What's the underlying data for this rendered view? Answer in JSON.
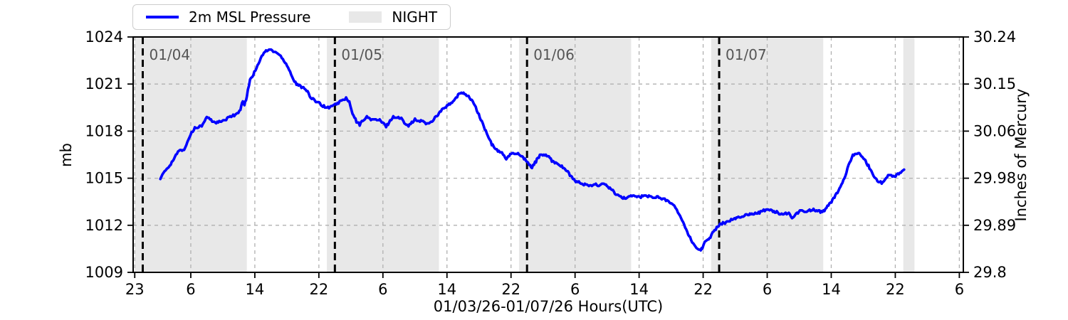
{
  "legend": {
    "pressure_label": "2m MSL Pressure",
    "night_label": "NIGHT"
  },
  "axes": {
    "left_label": "mb",
    "right_label": "Inches of Mercury",
    "x_label": "01/03/26-01/07/26  Hours(UTC)"
  },
  "colors": {
    "line": "#0000ff",
    "night_band": "#e8e8e8",
    "grid": "#b0b0b0",
    "day_line": "#000000",
    "day_label": "#555555",
    "spine": "#000000",
    "text": "#000000",
    "legend_border": "#cccccc"
  },
  "chart_data": {
    "type": "line",
    "title": "",
    "xlabel": "01/03/26-01/07/26  Hours(UTC)",
    "ylabel_left": "mb",
    "ylabel_right": "Inches of Mercury",
    "x_unit": "hours relative to 01/04/26 00:00 UTC",
    "xlim": [
      -1.2,
      102.5
    ],
    "ylim_mb": [
      1009,
      1024
    ],
    "ylim_inhg": [
      29.8,
      30.24
    ],
    "grid": true,
    "legend_position": "top-left-outside",
    "left_ticks": [
      1009,
      1012,
      1015,
      1018,
      1021,
      1024
    ],
    "right_tick_labels": [
      "29.8",
      "29.89",
      "29.98",
      "30.06",
      "30.15",
      "30.24"
    ],
    "x_ticks": [
      {
        "hour": -1,
        "label": "23"
      },
      {
        "hour": 6,
        "label": "6"
      },
      {
        "hour": 14,
        "label": "14"
      },
      {
        "hour": 22,
        "label": "22"
      },
      {
        "hour": 30,
        "label": "6"
      },
      {
        "hour": 38,
        "label": "14"
      },
      {
        "hour": 46,
        "label": "22"
      },
      {
        "hour": 54,
        "label": "6"
      },
      {
        "hour": 62,
        "label": "14"
      },
      {
        "hour": 70,
        "label": "22"
      },
      {
        "hour": 78,
        "label": "6"
      },
      {
        "hour": 86,
        "label": "14"
      },
      {
        "hour": 94,
        "label": "22"
      },
      {
        "hour": 102,
        "label": "6"
      }
    ],
    "day_lines": [
      {
        "hour": 0,
        "label": "01/04"
      },
      {
        "hour": 24,
        "label": "01/05"
      },
      {
        "hour": 48,
        "label": "01/06"
      },
      {
        "hour": 72,
        "label": "01/07"
      }
    ],
    "night_bands": [
      [
        -1.0,
        13.0
      ],
      [
        23.0,
        37.0
      ],
      [
        47.0,
        61.0
      ],
      [
        71.0,
        85.0
      ],
      [
        95.0,
        96.4
      ]
    ],
    "series": [
      {
        "name": "2m MSL Pressure",
        "color": "#0000ff",
        "points": [
          [
            2.2,
            1015.0
          ],
          [
            2.6,
            1015.3
          ],
          [
            3.0,
            1015.6
          ],
          [
            3.5,
            1015.9
          ],
          [
            4.0,
            1016.3
          ],
          [
            4.4,
            1016.7
          ],
          [
            4.9,
            1016.8
          ],
          [
            5.3,
            1016.9
          ],
          [
            5.7,
            1017.5
          ],
          [
            6.1,
            1017.9
          ],
          [
            6.5,
            1018.2
          ],
          [
            7.0,
            1018.3
          ],
          [
            7.5,
            1018.4
          ],
          [
            8.0,
            1018.9
          ],
          [
            8.4,
            1018.75
          ],
          [
            8.8,
            1018.6
          ],
          [
            9.3,
            1018.55
          ],
          [
            9.8,
            1018.6
          ],
          [
            10.3,
            1018.7
          ],
          [
            10.8,
            1018.9
          ],
          [
            11.3,
            1019.0
          ],
          [
            11.8,
            1019.1
          ],
          [
            12.2,
            1019.35
          ],
          [
            12.5,
            1019.9
          ],
          [
            12.7,
            1019.65
          ],
          [
            13.0,
            1020.2
          ],
          [
            13.4,
            1021.3
          ],
          [
            13.8,
            1021.6
          ],
          [
            14.2,
            1022.05
          ],
          [
            14.6,
            1022.5
          ],
          [
            15.0,
            1022.9
          ],
          [
            15.4,
            1023.1
          ],
          [
            15.9,
            1023.2
          ],
          [
            16.3,
            1023.1
          ],
          [
            16.7,
            1023.0
          ],
          [
            17.1,
            1022.85
          ],
          [
            17.5,
            1022.6
          ],
          [
            17.9,
            1022.3
          ],
          [
            18.4,
            1021.8
          ],
          [
            18.8,
            1021.3
          ],
          [
            19.2,
            1021.0
          ],
          [
            19.7,
            1020.85
          ],
          [
            20.2,
            1020.75
          ],
          [
            20.6,
            1020.5
          ],
          [
            21.0,
            1020.1
          ],
          [
            21.5,
            1019.95
          ],
          [
            22.0,
            1019.85
          ],
          [
            22.5,
            1019.6
          ],
          [
            23.0,
            1019.5
          ],
          [
            23.4,
            1019.55
          ],
          [
            23.8,
            1019.6
          ],
          [
            24.2,
            1019.75
          ],
          [
            24.7,
            1019.9
          ],
          [
            25.1,
            1020.0
          ],
          [
            25.4,
            1020.1
          ],
          [
            25.8,
            1019.85
          ],
          [
            26.2,
            1019.1
          ],
          [
            26.7,
            1018.6
          ],
          [
            27.1,
            1018.4
          ],
          [
            27.5,
            1018.7
          ],
          [
            28.0,
            1018.9
          ],
          [
            28.5,
            1018.75
          ],
          [
            29.0,
            1018.7
          ],
          [
            29.6,
            1018.7
          ],
          [
            30.0,
            1018.5
          ],
          [
            30.4,
            1018.3
          ],
          [
            30.9,
            1018.65
          ],
          [
            31.3,
            1018.9
          ],
          [
            31.8,
            1018.85
          ],
          [
            32.3,
            1018.8
          ],
          [
            32.8,
            1018.5
          ],
          [
            33.2,
            1018.35
          ],
          [
            33.6,
            1018.55
          ],
          [
            34.0,
            1018.75
          ],
          [
            34.5,
            1018.6
          ],
          [
            35.0,
            1018.65
          ],
          [
            35.5,
            1018.45
          ],
          [
            36.0,
            1018.55
          ],
          [
            36.5,
            1018.85
          ],
          [
            37.0,
            1019.15
          ],
          [
            37.5,
            1019.4
          ],
          [
            38.0,
            1019.6
          ],
          [
            38.5,
            1019.75
          ],
          [
            39.0,
            1020.0
          ],
          [
            39.4,
            1020.3
          ],
          [
            39.8,
            1020.45
          ],
          [
            40.2,
            1020.4
          ],
          [
            40.7,
            1020.2
          ],
          [
            41.1,
            1020.0
          ],
          [
            41.6,
            1019.5
          ],
          [
            42.1,
            1018.9
          ],
          [
            42.6,
            1018.3
          ],
          [
            43.1,
            1017.7
          ],
          [
            43.6,
            1017.15
          ],
          [
            44.1,
            1016.85
          ],
          [
            44.6,
            1016.7
          ],
          [
            45.0,
            1016.55
          ],
          [
            45.4,
            1016.2
          ],
          [
            45.9,
            1016.5
          ],
          [
            46.4,
            1016.6
          ],
          [
            47.0,
            1016.55
          ],
          [
            47.5,
            1016.3
          ],
          [
            48.0,
            1016.1
          ],
          [
            48.5,
            1015.65
          ],
          [
            49.0,
            1016.0
          ],
          [
            49.6,
            1016.45
          ],
          [
            50.1,
            1016.5
          ],
          [
            50.6,
            1016.4
          ],
          [
            51.1,
            1016.1
          ],
          [
            51.6,
            1016.0
          ],
          [
            52.1,
            1015.85
          ],
          [
            52.6,
            1015.65
          ],
          [
            53.1,
            1015.4
          ],
          [
            53.6,
            1015.05
          ],
          [
            54.1,
            1014.8
          ],
          [
            54.6,
            1014.7
          ],
          [
            55.1,
            1014.6
          ],
          [
            55.6,
            1014.55
          ],
          [
            56.1,
            1014.5
          ],
          [
            56.6,
            1014.6
          ],
          [
            57.1,
            1014.5
          ],
          [
            57.6,
            1014.7
          ],
          [
            58.1,
            1014.45
          ],
          [
            58.6,
            1014.25
          ],
          [
            59.1,
            1014.0
          ],
          [
            59.6,
            1013.8
          ],
          [
            60.1,
            1013.75
          ],
          [
            60.6,
            1013.8
          ],
          [
            61.1,
            1013.9
          ],
          [
            61.6,
            1013.85
          ],
          [
            62.1,
            1013.8
          ],
          [
            62.6,
            1013.9
          ],
          [
            63.1,
            1013.85
          ],
          [
            63.6,
            1013.8
          ],
          [
            64.1,
            1013.8
          ],
          [
            64.6,
            1013.75
          ],
          [
            65.2,
            1013.65
          ],
          [
            65.8,
            1013.5
          ],
          [
            66.4,
            1013.2
          ],
          [
            67.0,
            1012.7
          ],
          [
            67.5,
            1012.2
          ],
          [
            68.0,
            1011.6
          ],
          [
            68.5,
            1011.1
          ],
          [
            68.9,
            1010.75
          ],
          [
            69.3,
            1010.5
          ],
          [
            69.6,
            1010.4
          ],
          [
            69.9,
            1010.5
          ],
          [
            70.2,
            1010.95
          ],
          [
            70.6,
            1011.1
          ],
          [
            70.9,
            1011.25
          ],
          [
            71.3,
            1011.65
          ],
          [
            71.7,
            1011.85
          ],
          [
            72.1,
            1012.05
          ],
          [
            72.6,
            1012.15
          ],
          [
            73.2,
            1012.3
          ],
          [
            73.8,
            1012.4
          ],
          [
            74.4,
            1012.5
          ],
          [
            75.0,
            1012.6
          ],
          [
            75.6,
            1012.7
          ],
          [
            76.2,
            1012.75
          ],
          [
            76.8,
            1012.8
          ],
          [
            77.4,
            1012.9
          ],
          [
            78.0,
            1013.0
          ],
          [
            78.6,
            1012.95
          ],
          [
            79.2,
            1012.85
          ],
          [
            79.8,
            1012.7
          ],
          [
            80.3,
            1012.75
          ],
          [
            80.7,
            1012.8
          ],
          [
            81.1,
            1012.5
          ],
          [
            81.6,
            1012.7
          ],
          [
            82.2,
            1012.95
          ],
          [
            82.8,
            1012.9
          ],
          [
            83.3,
            1012.95
          ],
          [
            83.9,
            1013.0
          ],
          [
            84.4,
            1012.9
          ],
          [
            84.9,
            1012.85
          ],
          [
            85.4,
            1013.1
          ],
          [
            85.9,
            1013.4
          ],
          [
            86.4,
            1013.8
          ],
          [
            86.9,
            1014.2
          ],
          [
            87.4,
            1014.7
          ],
          [
            87.9,
            1015.4
          ],
          [
            88.3,
            1016.0
          ],
          [
            88.7,
            1016.45
          ],
          [
            89.1,
            1016.6
          ],
          [
            89.5,
            1016.55
          ],
          [
            89.9,
            1016.35
          ],
          [
            90.4,
            1016.0
          ],
          [
            90.9,
            1015.55
          ],
          [
            91.4,
            1015.1
          ],
          [
            91.9,
            1014.75
          ],
          [
            92.3,
            1014.7
          ],
          [
            92.7,
            1014.9
          ],
          [
            93.1,
            1015.25
          ],
          [
            93.5,
            1015.15
          ],
          [
            93.9,
            1015.1
          ],
          [
            94.3,
            1015.25
          ],
          [
            94.7,
            1015.4
          ],
          [
            95.1,
            1015.55
          ]
        ]
      }
    ]
  }
}
